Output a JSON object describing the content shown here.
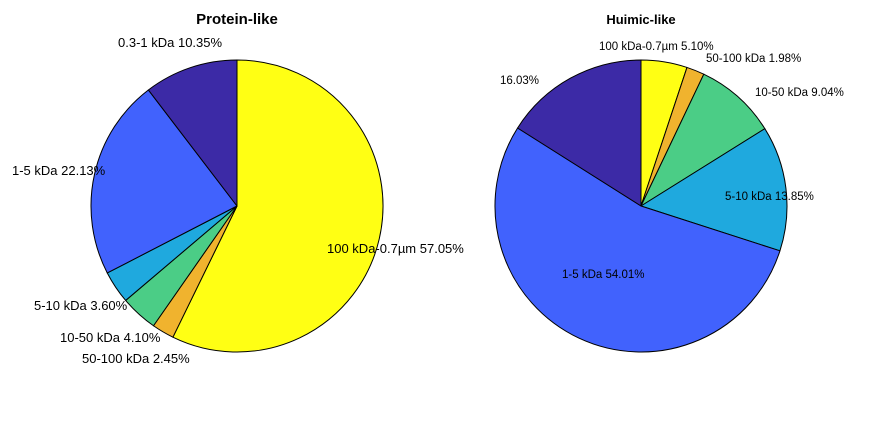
{
  "chart_data": [
    {
      "type": "pie",
      "title": "Protein-like",
      "slices": [
        {
          "label": "100 kDa-0.7µm",
          "percent_label": "57.05%",
          "value": 57.05,
          "color": "#ffff14"
        },
        {
          "label": "50-100 kDa",
          "percent_label": "2.45%",
          "value": 2.45,
          "color": "#f0b32e"
        },
        {
          "label": "10-50 kDa",
          "percent_label": "4.10%",
          "value": 4.1,
          "color": "#4bcd86"
        },
        {
          "label": "5-10 kDa",
          "percent_label": "3.60%",
          "value": 3.6,
          "color": "#1fa9de"
        },
        {
          "label": "1-5 kDa",
          "percent_label": "22.13%",
          "value": 22.13,
          "color": "#4162fd"
        },
        {
          "label": "0.3-1 kDa",
          "percent_label": "10.35%",
          "value": 10.35,
          "color": "#3c2aa6"
        }
      ]
    },
    {
      "type": "pie",
      "title": "Huimic-like",
      "slices": [
        {
          "label": "100 kDa-0.7µm",
          "percent_label": "5.10%",
          "value": 5.1,
          "color": "#ffff14"
        },
        {
          "label": "50-100 kDa",
          "percent_label": "1.98%",
          "value": 1.98,
          "color": "#f0b32e"
        },
        {
          "label": "10-50 kDa",
          "percent_label": "9.04%",
          "value": 9.04,
          "color": "#4bcd86"
        },
        {
          "label": "5-10 kDa",
          "percent_label": "13.85%",
          "value": 13.85,
          "color": "#1fa9de"
        },
        {
          "label": "1-5 kDa",
          "percent_label": "54.01%",
          "value": 54.01,
          "color": "#4162fd"
        },
        {
          "label": "",
          "percent_label": "16.03%",
          "value": 16.03,
          "color": "#3c2aa6"
        }
      ]
    }
  ]
}
